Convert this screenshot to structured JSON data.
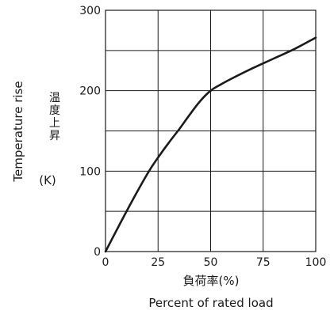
{
  "chart_data": {
    "type": "line",
    "xlabel_ja": "負荷率(%)",
    "xlabel": "Percent of rated load",
    "ylabel": "Temperature rise",
    "ylabel_ja": "温度上昇",
    "yunit": "(K)",
    "xlim": [
      0,
      100
    ],
    "ylim": [
      0,
      300
    ],
    "x_ticks": [
      0,
      25,
      50,
      75,
      100
    ],
    "y_ticks": [
      0,
      100,
      200,
      300
    ],
    "grid": true,
    "series": [
      {
        "x": [
          0,
          10,
          20,
          25,
          30,
          35,
          40,
          45,
          50,
          55,
          60,
          70,
          80,
          90,
          100
        ],
        "y": [
          0,
          50,
          97,
          117,
          135,
          152,
          170,
          187,
          200,
          208,
          215,
          228,
          240,
          252,
          266
        ]
      }
    ]
  }
}
